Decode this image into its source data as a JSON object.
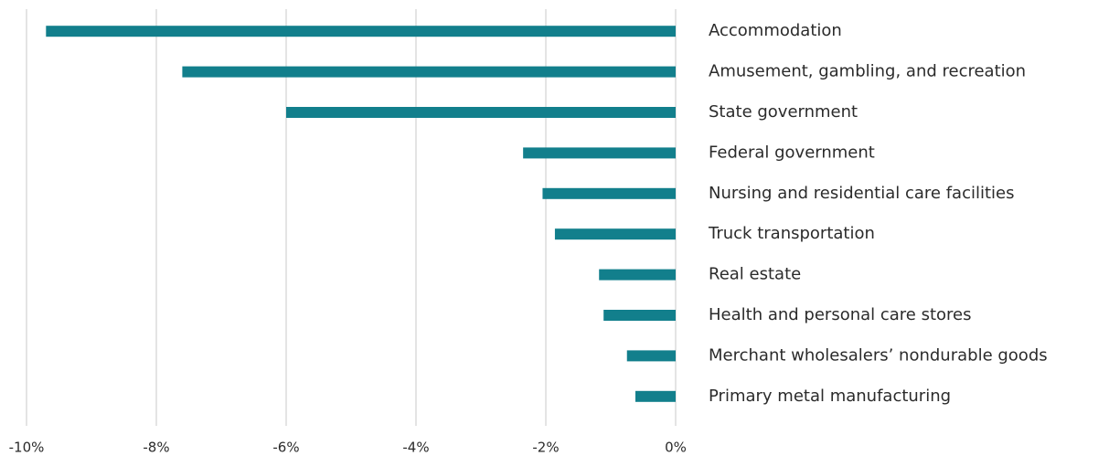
{
  "chart_data": {
    "type": "bar",
    "orientation": "horizontal",
    "categories": [
      "Accommodation",
      "Amusement, gambling, and recreation",
      "State government",
      "Federal government",
      "Nursing and residential care facilities",
      "Truck transportation",
      "Real estate",
      "Health and personal care stores",
      "Merchant wholesalers’ nondurable goods",
      "Primary metal manufacturing"
    ],
    "values": [
      -9.7,
      -7.6,
      -6.0,
      -2.35,
      -2.05,
      -1.86,
      -1.18,
      -1.11,
      -0.75,
      -0.62
    ],
    "color": "#127f8c",
    "xlim": [
      -10,
      0
    ],
    "xticks": [
      {
        "value": -10,
        "label": "-10%"
      },
      {
        "value": -8,
        "label": "-8%"
      },
      {
        "value": -6,
        "label": "-6%"
      },
      {
        "value": -4,
        "label": "-4%"
      },
      {
        "value": -2,
        "label": "-2%"
      },
      {
        "value": 0,
        "label": "0%"
      }
    ],
    "grid": true
  }
}
